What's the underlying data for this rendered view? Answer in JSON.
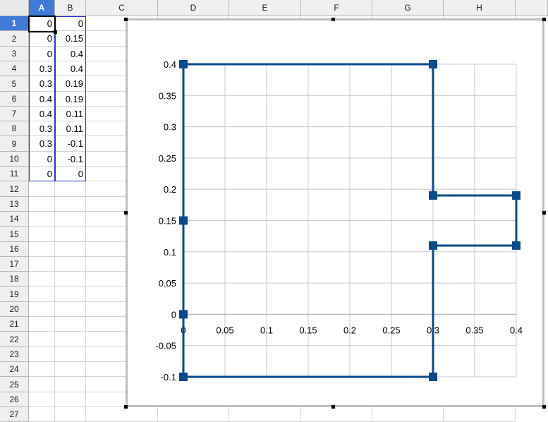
{
  "spreadsheet": {
    "columns": [
      "A",
      "B",
      "C",
      "D",
      "E",
      "F",
      "G",
      "H"
    ],
    "selected_column": "A",
    "rows": [
      "1",
      "2",
      "3",
      "4",
      "5",
      "6",
      "7",
      "8",
      "9",
      "10",
      "11",
      "12",
      "13",
      "14",
      "15",
      "16",
      "17",
      "18",
      "19",
      "20",
      "21",
      "22",
      "23",
      "24",
      "25",
      "26",
      "27"
    ],
    "selected_row": "1",
    "cells": [
      [
        "0",
        "0"
      ],
      [
        "0",
        "0.15"
      ],
      [
        "0",
        "0.4"
      ],
      [
        "0.3",
        "0.4"
      ],
      [
        "0.3",
        "0.19"
      ],
      [
        "0.4",
        "0.19"
      ],
      [
        "0.4",
        "0.11"
      ],
      [
        "0.3",
        "0.11"
      ],
      [
        "0.3",
        "-0.1"
      ],
      [
        "0",
        "-0.1"
      ],
      [
        "0",
        "0"
      ]
    ]
  },
  "chart_data": {
    "type": "scatter",
    "series": [
      {
        "x": [
          0,
          0,
          0,
          0.3,
          0.3,
          0.4,
          0.4,
          0.3,
          0.3,
          0,
          0
        ],
        "y": [
          0,
          0.15,
          0.4,
          0.4,
          0.19,
          0.19,
          0.11,
          0.11,
          -0.1,
          -0.1,
          0
        ],
        "color": "#0a4a8a",
        "marker": "square",
        "lines": true
      }
    ],
    "xlim": [
      0,
      0.4
    ],
    "ylim": [
      -0.1,
      0.4
    ],
    "xticks": [
      "0",
      "0.05",
      "0.1",
      "0.15",
      "0.2",
      "0.25",
      "0.3",
      "0.35",
      "0.4"
    ],
    "yticks": [
      "-0.1",
      "-0.05",
      "0",
      "0.05",
      "0.1",
      "0.15",
      "0.2",
      "0.25",
      "0.3",
      "0.35",
      "0.4"
    ],
    "grid": true,
    "legend": false
  }
}
